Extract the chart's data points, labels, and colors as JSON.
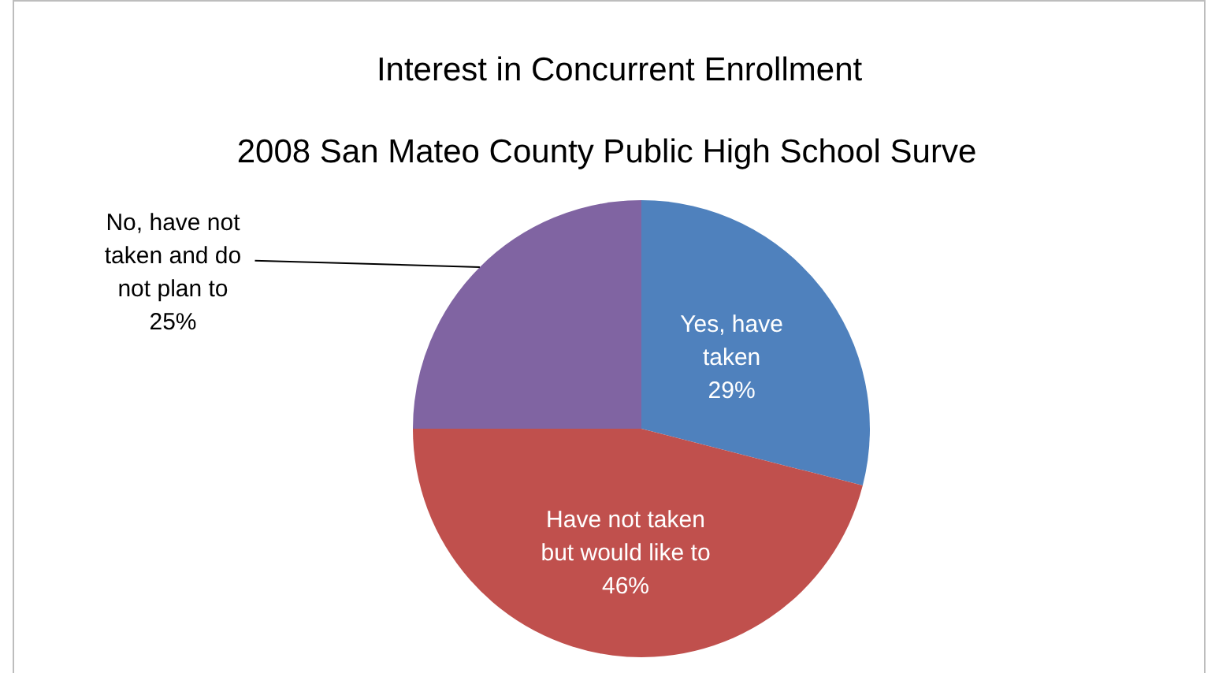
{
  "chart_data": {
    "type": "pie",
    "title": "Interest in Concurrent Enrollment",
    "subtitle": "2008 San Mateo County Public High School Surve",
    "categories": [
      "Yes, have taken",
      "Have not taken but would like to",
      "No, have not taken and do not plan to"
    ],
    "values": [
      29,
      46,
      25
    ],
    "colors": [
      "#4f81bd",
      "#c0504d",
      "#8064a2"
    ],
    "value_labels": [
      "29%",
      "46%",
      "25%"
    ],
    "legend": false
  }
}
